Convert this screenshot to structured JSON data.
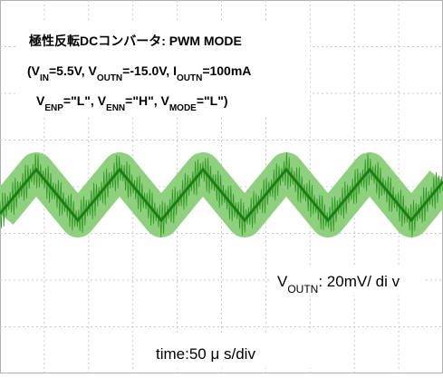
{
  "title": "極性反転DCコンバータ: PWM MODE",
  "conditions": [
    [
      "(V",
      "IN",
      "=5.5V, V",
      "OUTN",
      "=-15.0V, I",
      "OUTN",
      "=100mA"
    ],
    [
      "V",
      "ENP",
      "=\"L\", V",
      "ENN",
      "=\"H\", V",
      "MODE",
      "=\"L\")"
    ]
  ],
  "vertical_scale": [
    "V",
    "OUTN",
    ": 20mV/ di v"
  ],
  "time_scale": "time:50 μ s/div"
}
